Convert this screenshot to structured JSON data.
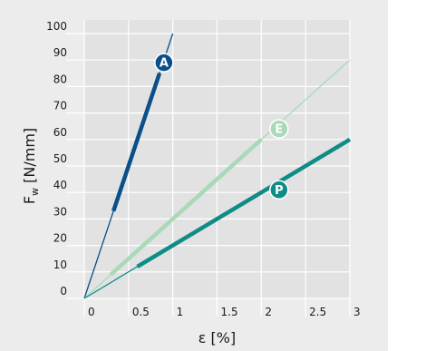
{
  "chart_data": {
    "type": "line",
    "xlabel": "ε [%]",
    "ylabel": "F",
    "ylabel_sub": "w",
    "ylabel_unit": " [N/mm]",
    "xlim": [
      0,
      3
    ],
    "ylim": [
      0,
      100
    ],
    "x_ticks": [
      {
        "value": 0,
        "label": "0"
      },
      {
        "value": 0.5,
        "label": "0.5"
      },
      {
        "value": 1,
        "label": "1"
      },
      {
        "value": 1.5,
        "label": "1.5"
      },
      {
        "value": 2,
        "label": "2"
      },
      {
        "value": 2.5,
        "label": "2.5"
      },
      {
        "value": 3,
        "label": "3"
      }
    ],
    "y_ticks": [
      {
        "value": 0,
        "label": "0"
      },
      {
        "value": 10,
        "label": "10"
      },
      {
        "value": 20,
        "label": "20"
      },
      {
        "value": 30,
        "label": "30"
      },
      {
        "value": 40,
        "label": "40"
      },
      {
        "value": 50,
        "label": "50"
      },
      {
        "value": 60,
        "label": "60"
      },
      {
        "value": 70,
        "label": "70"
      },
      {
        "value": 80,
        "label": "80"
      },
      {
        "value": 90,
        "label": "90"
      },
      {
        "value": 100,
        "label": "100"
      }
    ],
    "grid": true,
    "background_color": "#e2e2e2",
    "grid_color": "#ffffff",
    "series": [
      {
        "name": "A",
        "color": "#0b4f8a",
        "line": [
          [
            0,
            0
          ],
          [
            1.0,
            100
          ]
        ],
        "highlight": [
          [
            0.33,
            33
          ],
          [
            0.85,
            85
          ]
        ],
        "badge": [
          0.9,
          89
        ]
      },
      {
        "name": "E",
        "color": "#a9d9b9",
        "line": [
          [
            0,
            0
          ],
          [
            3,
            90
          ]
        ],
        "highlight": [
          [
            0.3,
            9
          ],
          [
            2.0,
            60
          ]
        ],
        "badge": [
          2.2,
          64
        ]
      },
      {
        "name": "P",
        "color": "#0f8c86",
        "line": [
          [
            0,
            0
          ],
          [
            3,
            60
          ]
        ],
        "highlight": [
          [
            0.6,
            12
          ],
          [
            3,
            60
          ]
        ],
        "badge": [
          2.2,
          41
        ]
      }
    ]
  }
}
